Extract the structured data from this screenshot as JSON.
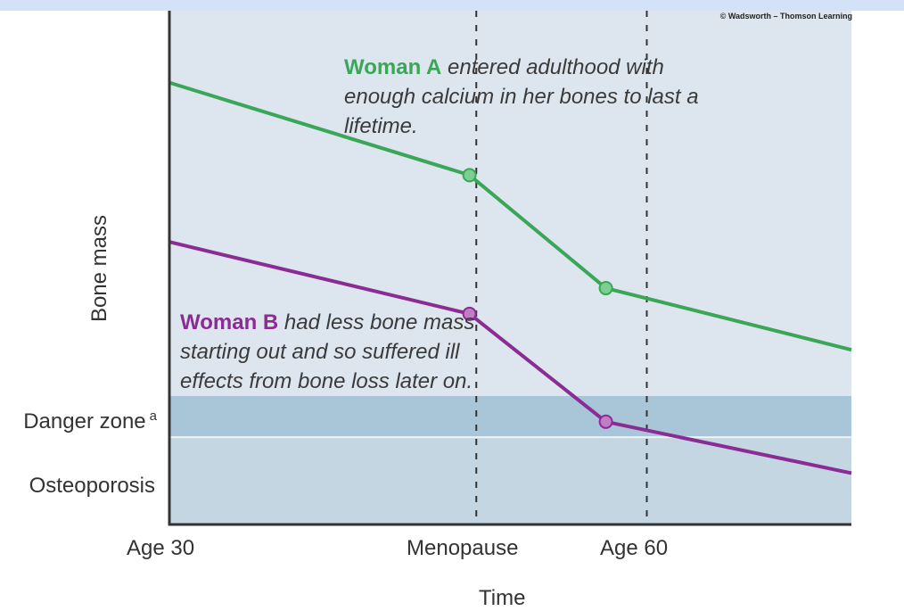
{
  "copyright": "© Wadsworth – Thomson Learning",
  "chart_data": {
    "type": "line",
    "xlabel": "Time",
    "ylabel": "Bone mass",
    "x_ticks": [
      {
        "label": "Age 30",
        "x": 0
      },
      {
        "label": "Menopause",
        "x": 45
      },
      {
        "label": "Age 60",
        "x": 70
      }
    ],
    "xlim": [
      0,
      100
    ],
    "ylim": [
      0,
      100
    ],
    "zones": [
      {
        "label": "Danger zone",
        "superscript": "a",
        "from": 17,
        "to": 25,
        "color": "#a9c6d9"
      },
      {
        "label": "Osteoporosis",
        "from": 0,
        "to": 17,
        "color": "#c3d6e2"
      }
    ],
    "grid": false,
    "series": [
      {
        "name": "Woman A",
        "color": "#3aa657",
        "points": [
          [
            0,
            86
          ],
          [
            44,
            68
          ],
          [
            64,
            46
          ],
          [
            100,
            34
          ]
        ],
        "markers": [
          [
            44,
            68
          ],
          [
            64,
            46
          ]
        ]
      },
      {
        "name": "Woman B",
        "color": "#8a2c93",
        "points": [
          [
            0,
            55
          ],
          [
            44,
            41
          ],
          [
            64,
            20
          ],
          [
            100,
            10
          ]
        ],
        "markers": [
          [
            44,
            41
          ],
          [
            64,
            20
          ]
        ]
      }
    ],
    "annotations": {
      "woman_a": {
        "who": "Woman A",
        "text": "entered adulthood with enough calcium in her bones to last a lifetime."
      },
      "woman_b": {
        "who": "Woman B",
        "text": "had less bone mass starting out and so suffered ill effects from bone loss later on."
      }
    }
  },
  "colors": {
    "plot_bg": "#dde6ef",
    "axis": "#333333",
    "dashed": "#333333"
  }
}
